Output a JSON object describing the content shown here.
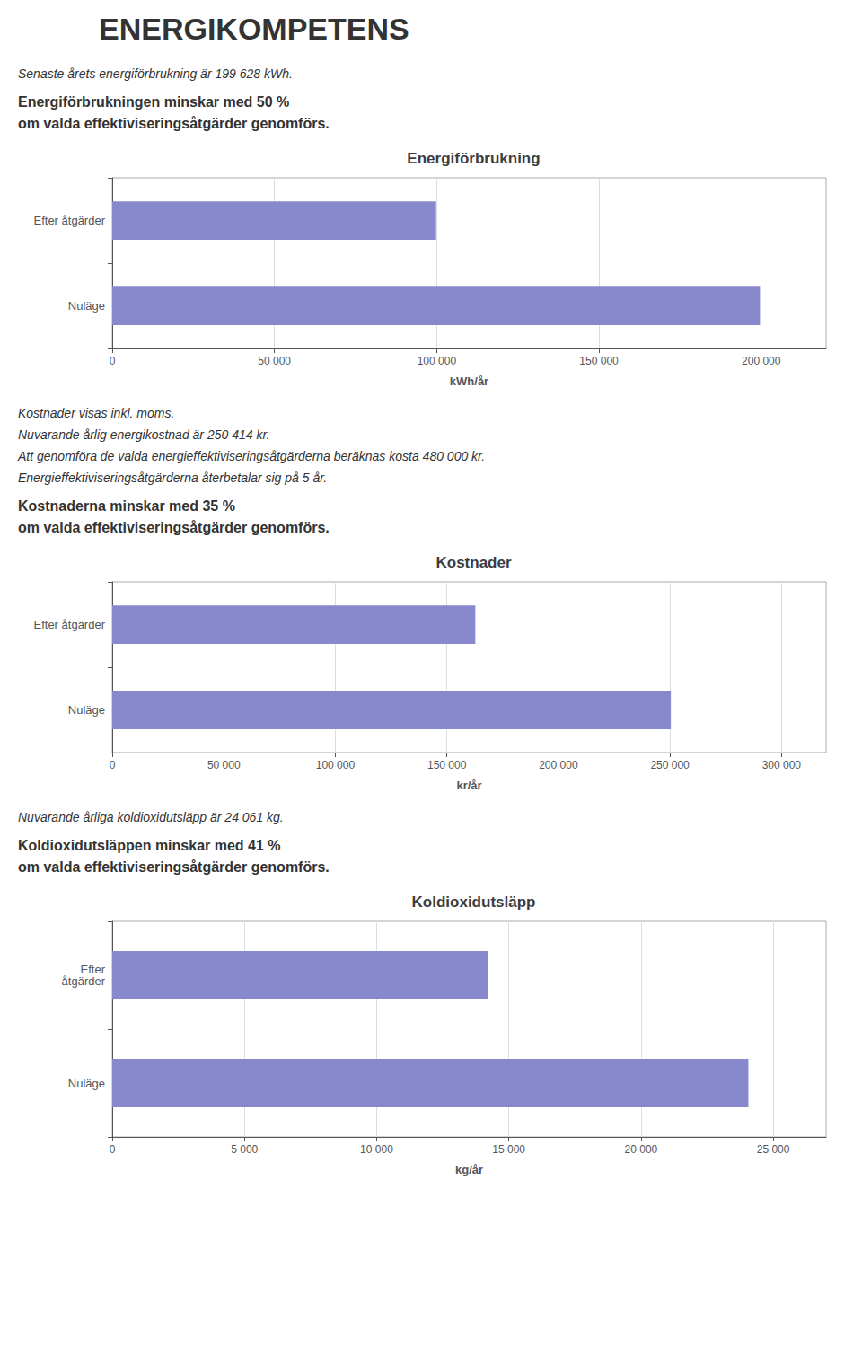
{
  "chart_data": [
    {
      "type": "bar",
      "orientation": "horizontal",
      "title": "Energiförbrukning",
      "annotations": [
        "ENERGIKOMPETENS",
        "Senaste årets energiförbrukning är 199 628 kWh.",
        "Energiförbrukningen minskar med 50 %",
        "om valda effektiviseringsåtgärder genomförs."
      ],
      "categories": [
        "Nuläge",
        "Efter åtgärder"
      ],
      "values": [
        199628,
        99814
      ],
      "color": "#8888cc",
      "xlabel": "kWh/år",
      "xlim": [
        0,
        220000
      ],
      "xticks": [
        0,
        {
          "value": 50000,
          "label": "50 000"
        },
        {
          "value": 100000,
          "label": "100 000"
        },
        {
          "value": 150000,
          "label": "150 000"
        },
        {
          "value": 200000,
          "label": "200 000"
        }
      ],
      "grid": true
    },
    {
      "type": "bar",
      "orientation": "horizontal",
      "title": "Kostnader",
      "annotations": [
        "Kostnader visas inkl. moms.",
        "Nuvarande årlig energikostnad är 250 414 kr.",
        "Att genomföra de valda energieffektiviseringsåtgärderna beräknas kosta 480 000 kr.",
        "Energieffektiviseringsåtgärderna återbetalar sig på 5 år.",
        "Kostnaderna minskar med 35 %",
        "om valda effektiviseringsåtgärder genomförs."
      ],
      "categories": [
        "Nuläge",
        "Efter åtgärder"
      ],
      "values": [
        250414,
        162769
      ],
      "color": "#8888cc",
      "xlabel": "kr/år",
      "xlim": [
        0,
        320000
      ],
      "xticks": [
        0,
        {
          "value": 50000,
          "label": "50 000"
        },
        {
          "value": 100000,
          "label": "100 000"
        },
        {
          "value": 150000,
          "label": "150 000"
        },
        {
          "value": 200000,
          "label": "200 000"
        },
        {
          "value": 250000,
          "label": "250 000"
        },
        {
          "value": 300000,
          "label": "300 000"
        }
      ],
      "grid": true
    },
    {
      "type": "bar",
      "orientation": "horizontal",
      "title": "Koldioxidutsläpp",
      "annotations": [
        "Nuvarande årliga koldioxidutsläpp är 24 061 kg.",
        "Koldioxidutsläppen minskar med 41 %",
        "om valda effektiviseringsåtgärder genomförs."
      ],
      "categories": [
        "Nuläge",
        "Efter\nåtgärder"
      ],
      "values": [
        24061,
        14196
      ],
      "color": "#8888cc",
      "xlabel": "kg/år",
      "xlim": [
        0,
        27000
      ],
      "xticks": [
        0,
        {
          "value": 5000,
          "label": "5 000"
        },
        {
          "value": 10000,
          "label": "10 000"
        },
        {
          "value": 15000,
          "label": "15 000"
        },
        {
          "value": 20000,
          "label": "20 000"
        },
        {
          "value": 25000,
          "label": "25 000"
        }
      ],
      "grid": true
    }
  ]
}
